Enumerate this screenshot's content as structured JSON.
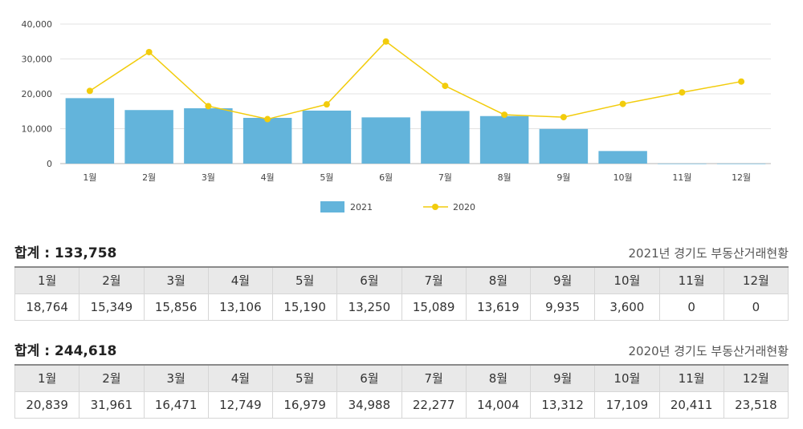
{
  "chart_data": {
    "type": "bar+line",
    "categories": [
      "1월",
      "2월",
      "3월",
      "4월",
      "5월",
      "6월",
      "7월",
      "8월",
      "9월",
      "10월",
      "11월",
      "12월"
    ],
    "series": [
      {
        "name": "2021",
        "type": "bar",
        "color": "#63b4db",
        "values": [
          18764,
          15349,
          15856,
          13106,
          15190,
          13250,
          15089,
          13619,
          9935,
          3600,
          0,
          0
        ]
      },
      {
        "name": "2020",
        "type": "line",
        "color": "#f2cc0c",
        "values": [
          20839,
          31961,
          16471,
          12749,
          16979,
          34988,
          22277,
          14004,
          13312,
          17109,
          20411,
          23518
        ]
      }
    ],
    "ylim": [
      0,
      40000
    ],
    "yticks": [
      "0",
      "10,000",
      "20,000",
      "30,000",
      "40,000"
    ],
    "grid": true,
    "legend_position": "bottom-center"
  },
  "tables": [
    {
      "total_label": "합계 : 133,758",
      "caption": "2021년 경기도 부동산거래현황",
      "headers": [
        "1월",
        "2월",
        "3월",
        "4월",
        "5월",
        "6월",
        "7월",
        "8월",
        "9월",
        "10월",
        "11월",
        "12월"
      ],
      "values": [
        "18,764",
        "15,349",
        "15,856",
        "13,106",
        "15,190",
        "13,250",
        "15,089",
        "13,619",
        "9,935",
        "3,600",
        "0",
        "0"
      ]
    },
    {
      "total_label": "합계 : 244,618",
      "caption": "2020년 경기도 부동산거래현황",
      "headers": [
        "1월",
        "2월",
        "3월",
        "4월",
        "5월",
        "6월",
        "7월",
        "8월",
        "9월",
        "10월",
        "11월",
        "12월"
      ],
      "values": [
        "20,839",
        "31,961",
        "16,471",
        "12,749",
        "16,979",
        "34,988",
        "22,277",
        "14,004",
        "13,312",
        "17,109",
        "20,411",
        "23,518"
      ]
    }
  ]
}
